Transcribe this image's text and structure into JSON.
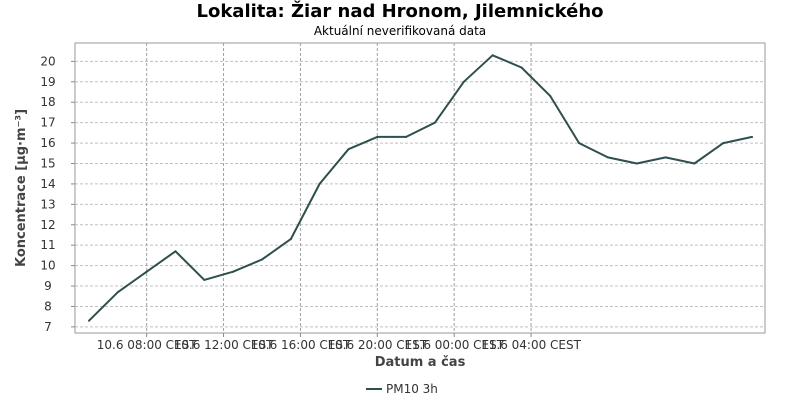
{
  "chart_data": {
    "type": "line",
    "title": "Lokalita: Žiar nad Hronom, Jilemnického",
    "subtitle": "Aktuální neverifikovaná data",
    "xlabel": "Datum a čas",
    "ylabel": "Koncentrace [µg·m⁻³]",
    "x": [
      "10.6 05:00",
      "10.6 06:30",
      "10.6 08:00",
      "10.6 09:30",
      "10.6 11:00",
      "10.6 12:30",
      "10.6 14:00",
      "10.6 15:30",
      "10.6 17:00",
      "10.6 18:30",
      "10.6 20:00",
      "10.6 21:30",
      "10.6 23:00",
      "11.6 00:30",
      "11.6 02:00",
      "11.6 03:30",
      "11.6 05:00",
      "11.6 06:30",
      "11.6 08:00",
      "11.6 09:30",
      "11.6 11:00",
      "11.6 12:30",
      "11.6 14:00",
      "11.6 15:30"
    ],
    "series": [
      {
        "name": "PM10 3h",
        "color": "#2f4f4f",
        "values": [
          7.3,
          8.7,
          9.7,
          10.7,
          9.3,
          9.7,
          10.3,
          11.3,
          14.0,
          15.7,
          16.3,
          16.3,
          17.0,
          19.0,
          20.3,
          19.7,
          18.3,
          16.0,
          15.3,
          15.0,
          15.3,
          15.0,
          16.0,
          16.3
        ]
      }
    ],
    "x_tick_labels": [
      "10.6 08:00 CEST",
      "10.6 12:00 CEST",
      "10.6 16:00 CEST",
      "10.6 20:00 CEST",
      "11.6 00:00 CEST",
      "11.6 04:00 CEST"
    ],
    "y_ticks": [
      7,
      8,
      9,
      10,
      11,
      12,
      13,
      14,
      15,
      16,
      17,
      18,
      19,
      20
    ],
    "ylim": [
      6.7,
      20.9
    ],
    "grid": true,
    "legend_position": "bottom-center"
  }
}
